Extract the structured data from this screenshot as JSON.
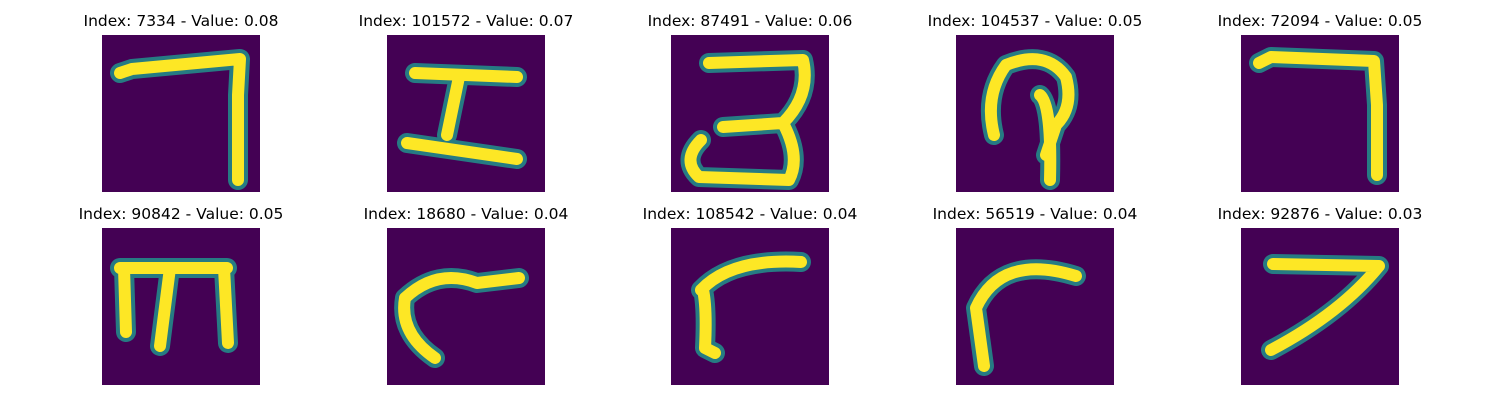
{
  "colors": {
    "background": "#440154",
    "stroke": "#fde725",
    "stroke_edge": "#21918c"
  },
  "panels": [
    {
      "title": "Index: 7334 - Value: 0.08",
      "glyph": "seven-like stroke"
    },
    {
      "title": "Index: 101572 - Value: 0.07",
      "glyph": "I-like stroke"
    },
    {
      "title": "Index: 87491 - Value: 0.06",
      "glyph": "three-like stroke"
    },
    {
      "title": "Index: 104537 - Value: 0.05",
      "glyph": "looped stroke"
    },
    {
      "title": "Index: 72094 - Value: 0.05",
      "glyph": "seven-like stroke"
    },
    {
      "title": "Index: 90842 - Value: 0.05",
      "glyph": "m-like stroke"
    },
    {
      "title": "Index: 18680 - Value: 0.04",
      "glyph": "curved stroke"
    },
    {
      "title": "Index: 108542 - Value: 0.04",
      "glyph": "hook stroke"
    },
    {
      "title": "Index: 56519 - Value: 0.04",
      "glyph": "arc stroke"
    },
    {
      "title": "Index: 92876 - Value: 0.03",
      "glyph": "seven-like stroke"
    }
  ]
}
